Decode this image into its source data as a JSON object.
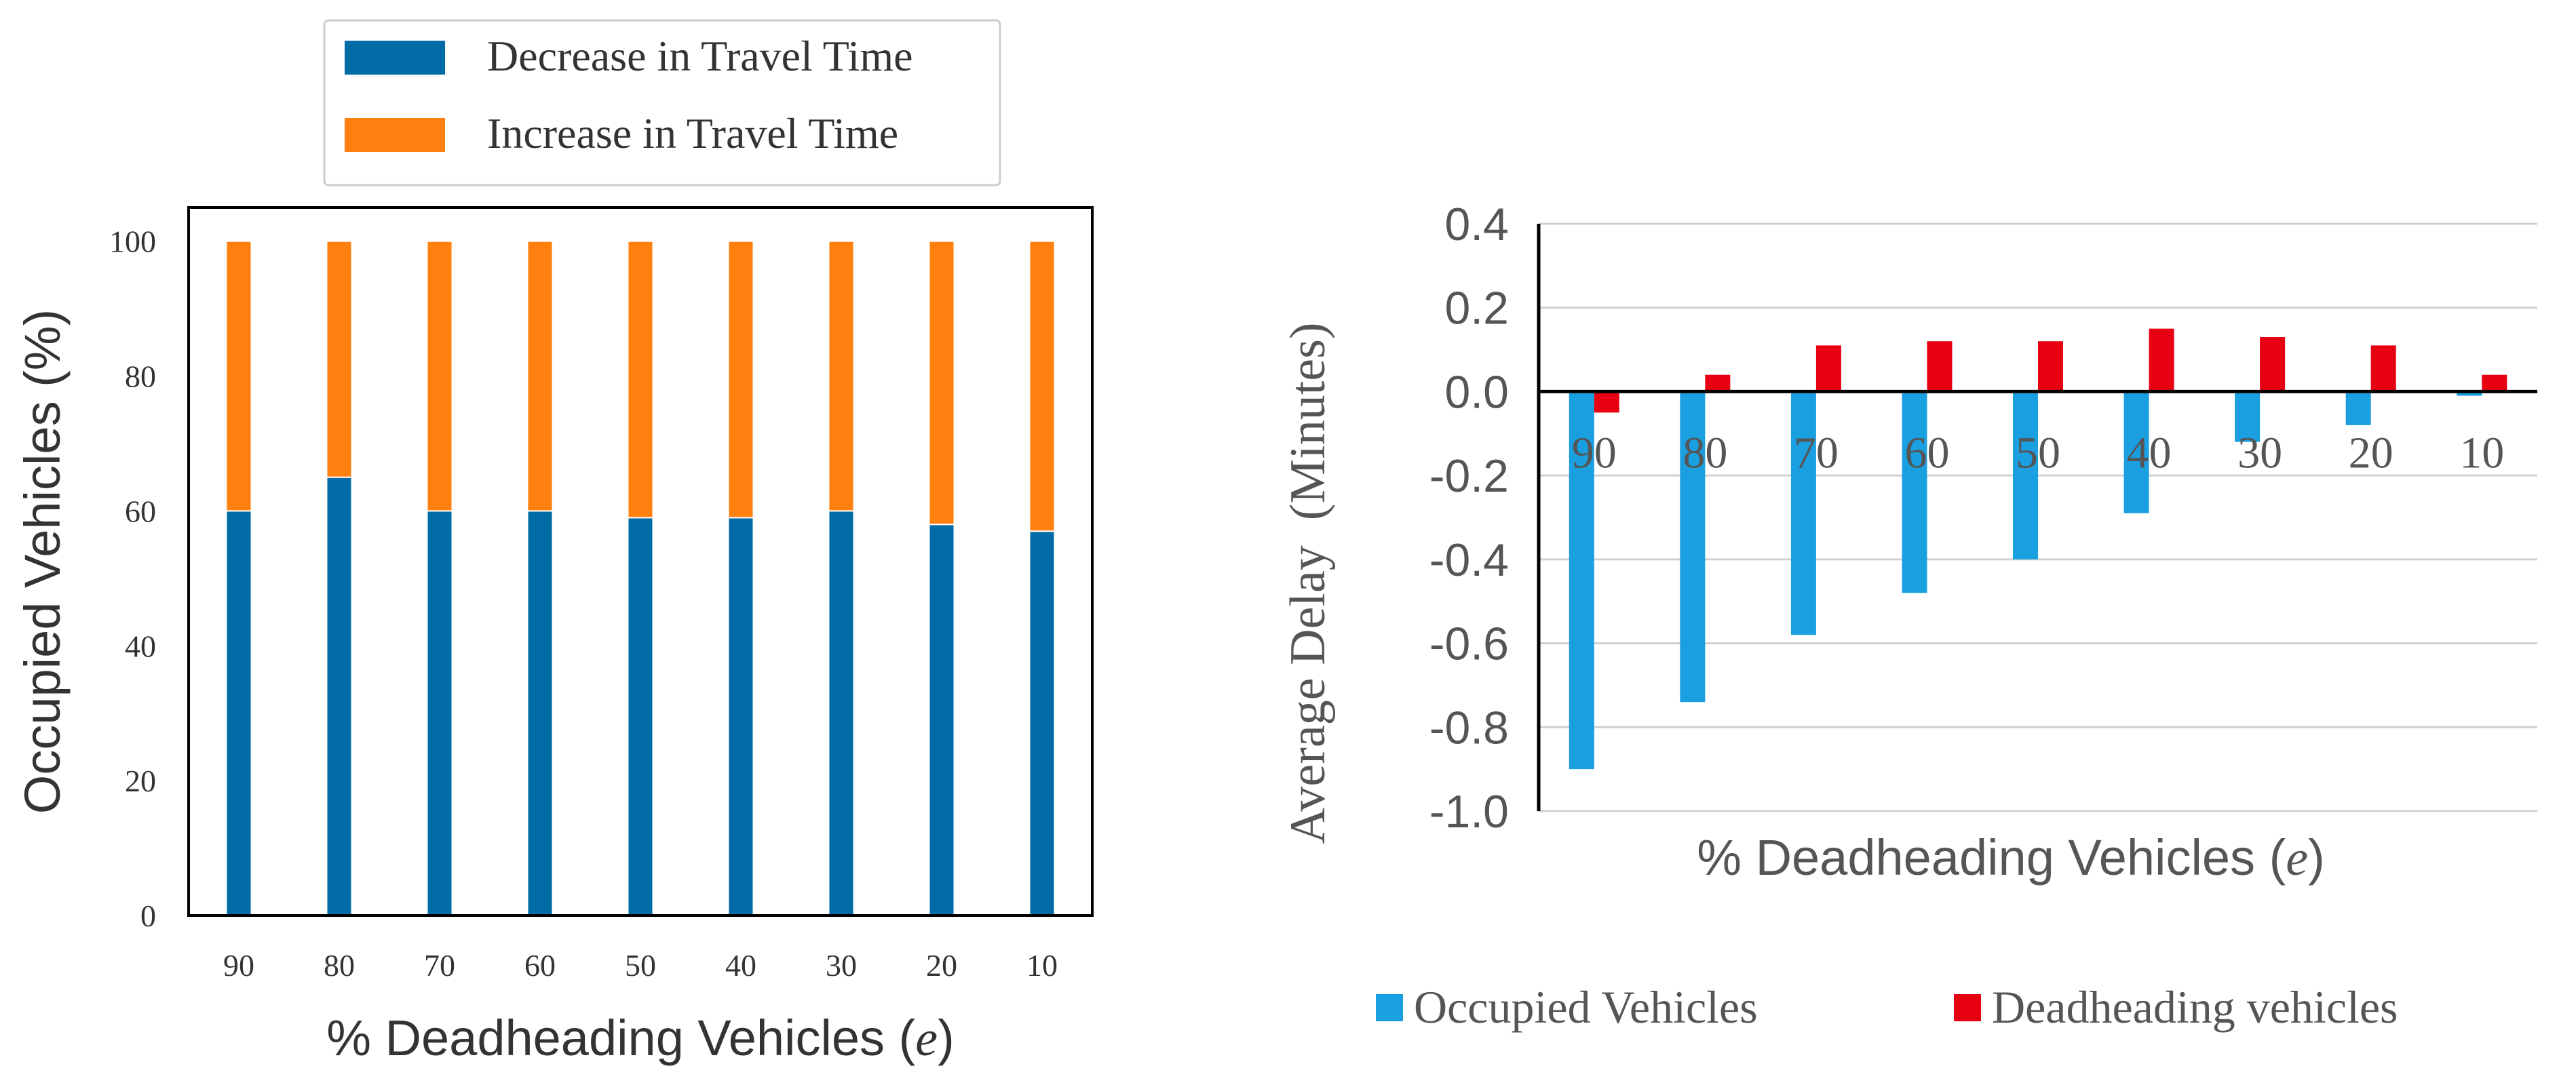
{
  "chart_data": [
    {
      "type": "bar",
      "stacked": true,
      "categories": [
        "90",
        "80",
        "70",
        "60",
        "50",
        "40",
        "30",
        "20",
        "10"
      ],
      "series": [
        {
          "name": "Decrease in Travel Time",
          "values": [
            60,
            65,
            60,
            60,
            59,
            59,
            60,
            58,
            57
          ],
          "color": "#006BA4"
        },
        {
          "name": "Increase in Travel Time",
          "values": [
            40,
            35,
            40,
            40,
            41,
            41,
            40,
            42,
            43
          ],
          "color": "#FF800E"
        }
      ],
      "xlabel_prefix": "% Deadheading Vehicles (",
      "xlabel_var": "e",
      "xlabel_suffix": ")",
      "ylabel": "Occupied Vehicles (%)",
      "ylim": [
        0,
        105
      ],
      "yticks": [
        0,
        20,
        40,
        60,
        80,
        100
      ],
      "legend_position": "top-center",
      "grid": false
    },
    {
      "type": "bar",
      "categories": [
        "90",
        "80",
        "70",
        "60",
        "50",
        "40",
        "30",
        "20",
        "10"
      ],
      "series": [
        {
          "name": "Occupied Vehicles",
          "values": [
            -0.9,
            -0.74,
            -0.58,
            -0.48,
            -0.4,
            -0.29,
            -0.12,
            -0.08,
            -0.01
          ],
          "color": "#1A9FE0"
        },
        {
          "name": "Deadheading vehicles",
          "values": [
            -0.05,
            0.04,
            0.11,
            0.12,
            0.12,
            0.15,
            0.13,
            0.11,
            0.04
          ],
          "color": "#E60012"
        }
      ],
      "xlabel_prefix": "% Deadheading Vehicles (",
      "xlabel_var": "e",
      "xlabel_suffix": ")",
      "ylabel": "Average Delay  (Minutes)",
      "ylim": [
        -1.0,
        0.4
      ],
      "yticks": [
        "-1.0",
        "-0.8",
        "-0.6",
        "-0.4",
        "-0.2",
        "0.0",
        "0.2",
        "0.4"
      ],
      "legend_position": "bottom",
      "grid": true
    }
  ]
}
